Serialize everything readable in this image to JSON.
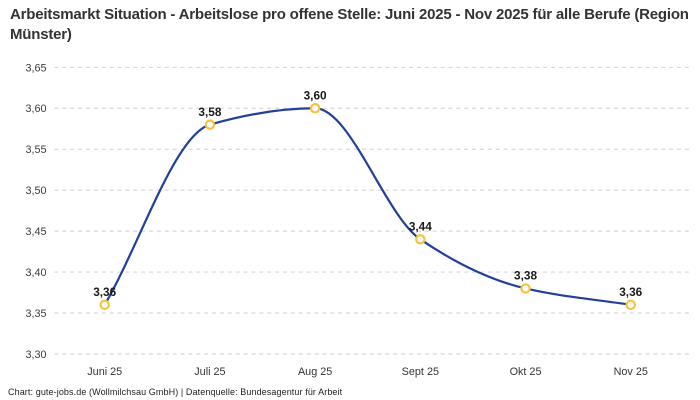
{
  "footer": {
    "attribution": "Chart: gute-jobs.de (Wollmilchsau GmbH) | Datenquelle: Bundesagentur für Arbeit"
  },
  "chart_data": {
    "type": "line",
    "title": "Arbeitsmarkt Situation - Arbeitslose pro offene Stelle: Juni 2025 - Nov 2025 für alle Berufe (Region Münster)",
    "categories": [
      "Juni 25",
      "Juli 25",
      "Aug 25",
      "Sept 25",
      "Okt 25",
      "Nov 25"
    ],
    "values": [
      3.36,
      3.58,
      3.6,
      3.44,
      3.38,
      3.36
    ],
    "point_labels": [
      "3,36",
      "3,58",
      "3,60",
      "3,44",
      "3,38",
      "3,36"
    ],
    "y_ticks": [
      3.3,
      3.35,
      3.4,
      3.45,
      3.5,
      3.55,
      3.6,
      3.65
    ],
    "y_tick_labels": [
      "3,30",
      "3,35",
      "3,40",
      "3,45",
      "3,50",
      "3,55",
      "3,60",
      "3,65"
    ],
    "ylim": [
      3.3,
      3.65
    ],
    "xlabel": "",
    "ylabel": "",
    "legend": "none",
    "grid": "horizontal-dashed",
    "curve": "monotone-smooth",
    "colors": {
      "line": "#21409c",
      "marker_stroke": "#f8c13c",
      "marker_fill": "#ffffff",
      "grid": "#cdcdcd",
      "title_text": "#333333",
      "tick_text": "#3d3d3d",
      "point_label_text": "#1a1a1a",
      "background": "#ffffff"
    }
  }
}
